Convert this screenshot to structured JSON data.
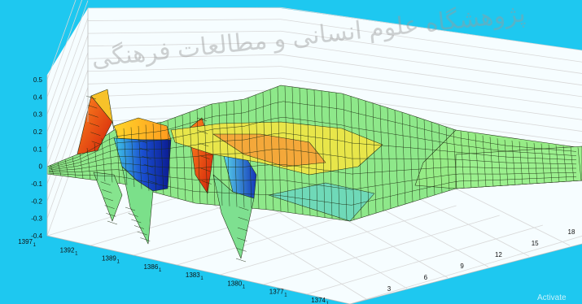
{
  "chart_data": {
    "type": "surface",
    "title": "",
    "xlabel": "",
    "ylabel": "",
    "zlabel": "",
    "z_ticks": [
      "0.5",
      "0.4",
      "0.3",
      "0.2",
      "0.1",
      "0",
      "-0.1",
      "-0.2",
      "-0.3",
      "-0.4"
    ],
    "z_range": [
      -0.4,
      0.5
    ],
    "year_axis": {
      "ticks": [
        "1397",
        "1392",
        "1389",
        "1386",
        "1383",
        "1380",
        "1377",
        "1374"
      ],
      "tick_subscript": "1"
    },
    "horizon_axis": {
      "ticks": [
        "3",
        "6",
        "9",
        "12",
        "15",
        "18"
      ]
    },
    "grid": true,
    "colormap": "parula-like (blue - green - yellow - orange - red)",
    "background_color": "#1ec8f0",
    "watermark_text": "پژوهشگاه علوم انسانی و مطالعات فرهنگی",
    "overlay_text": "Activate"
  }
}
